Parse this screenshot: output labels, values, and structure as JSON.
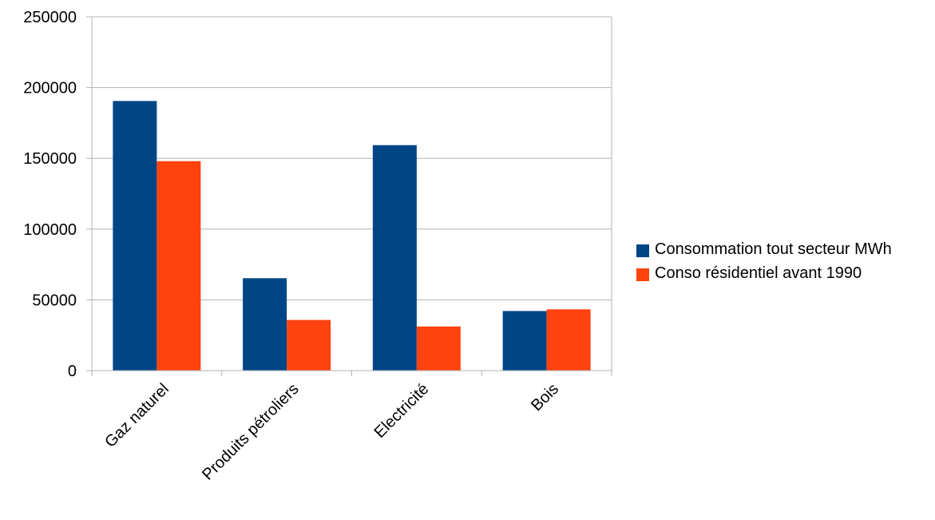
{
  "chart_data": {
    "type": "bar",
    "title": "",
    "xlabel": "",
    "ylabel": "",
    "categories": [
      "Gaz naturel",
      "Produits pétroliers",
      "Electricité",
      "Bois"
    ],
    "series": [
      {
        "name": "Consommation tout secteur MWh",
        "color": "#004586",
        "values": [
          190500,
          65300,
          159300,
          42100
        ]
      },
      {
        "name": "Conso résidentiel avant 1990",
        "color": "#ff420e",
        "values": [
          148000,
          35800,
          31200,
          43300
        ]
      }
    ],
    "ylim": [
      0,
      250000
    ],
    "yticks": [
      "0",
      "50000",
      "100000",
      "150000",
      "200000",
      "250000"
    ],
    "grid": "horizontal",
    "legend_position": "right"
  }
}
